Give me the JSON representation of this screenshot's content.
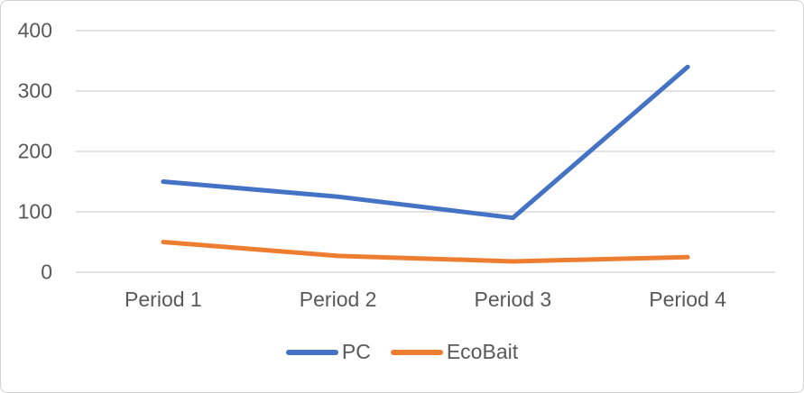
{
  "chart_data": {
    "type": "line",
    "title": "",
    "xlabel": "",
    "ylabel": "",
    "categories": [
      "Period 1",
      "Period 2",
      "Period 3",
      "Period 4"
    ],
    "series": [
      {
        "name": "PC",
        "color": "#4472C4",
        "values": [
          150,
          125,
          90,
          340
        ]
      },
      {
        "name": "EcoBait",
        "color": "#ED7D31",
        "values": [
          50,
          27,
          18,
          25
        ]
      }
    ],
    "ylim": [
      0,
      400
    ],
    "y_ticks": [
      400,
      300,
      200,
      100,
      0
    ],
    "y_tick_labels": [
      "400",
      "300",
      "200",
      "100",
      "0"
    ],
    "grid": "horizontal-only",
    "legend_position": "bottom-center",
    "colors": {
      "axis_text": "#595959",
      "gridline": "#D9D9D9",
      "frame_border": "#D2D2D2",
      "background": "#FFFFFF"
    }
  }
}
